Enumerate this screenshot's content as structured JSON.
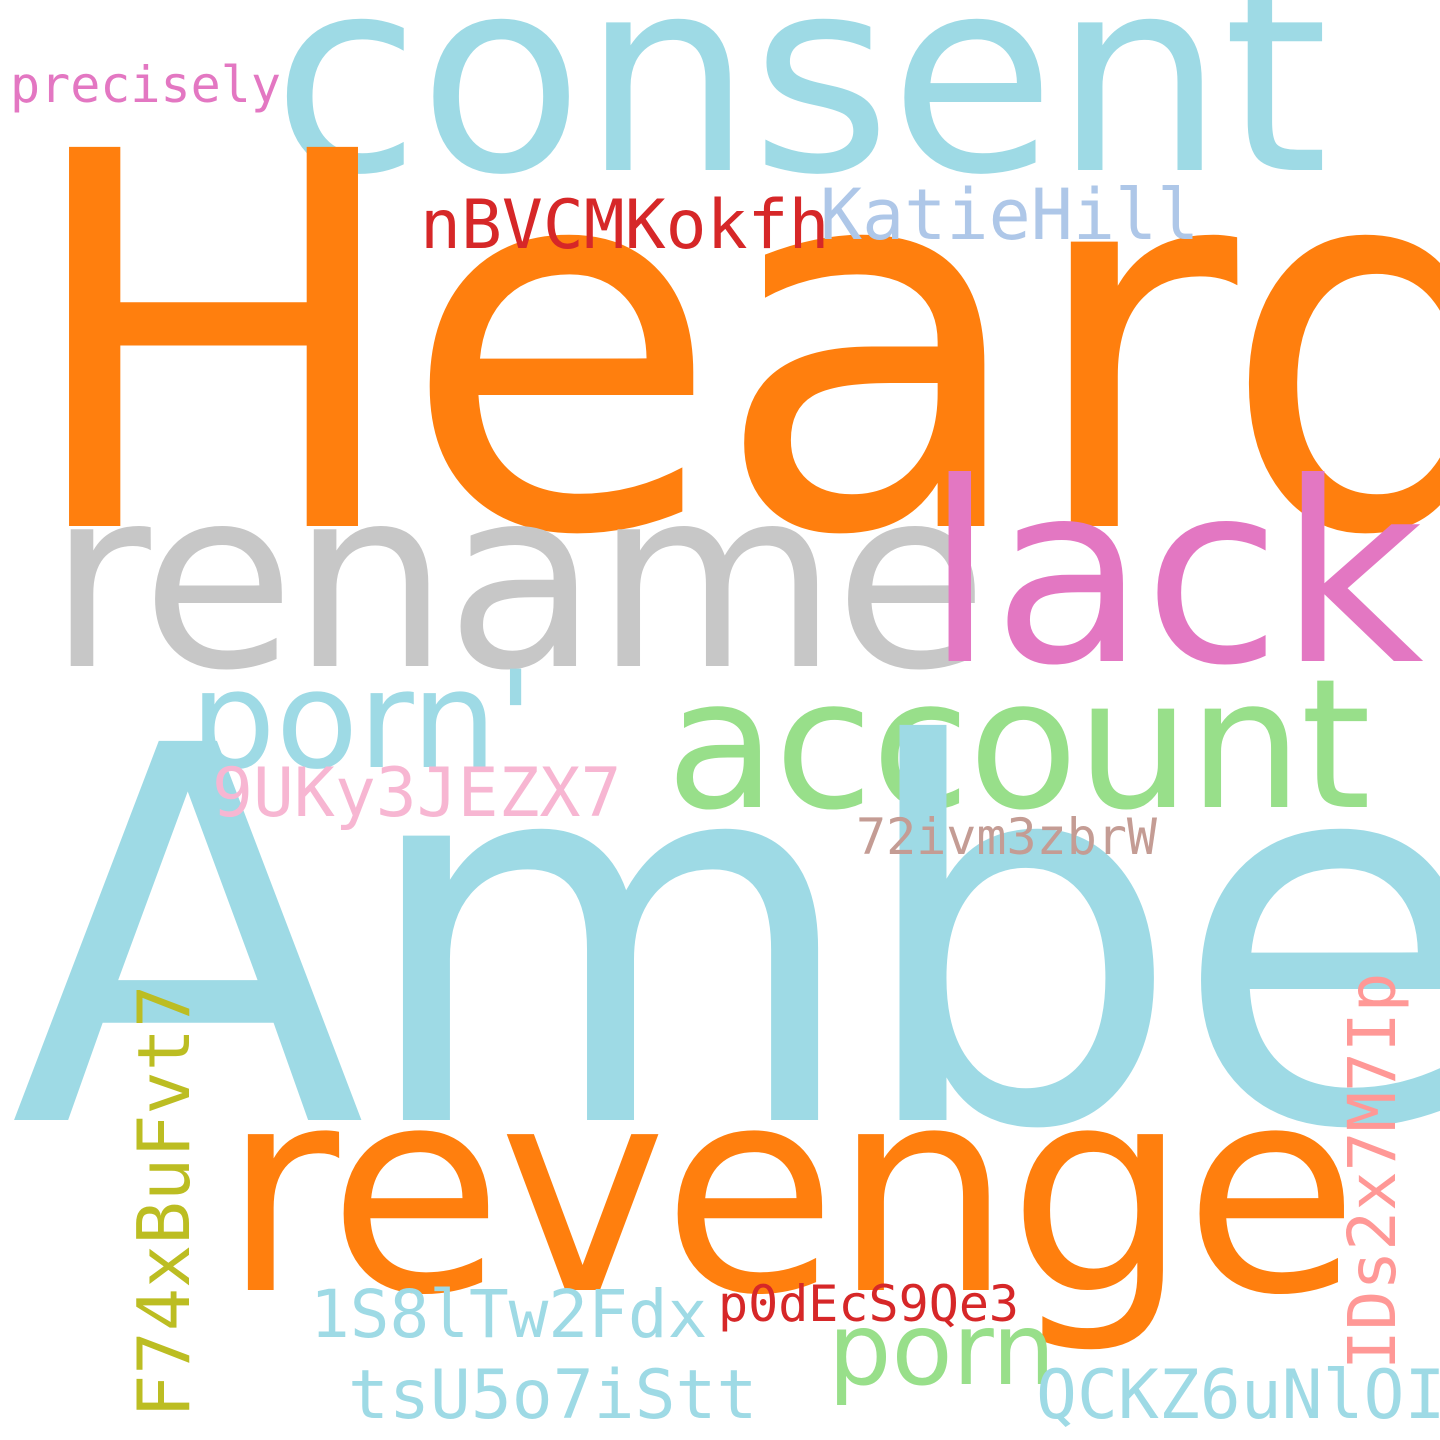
{
  "words": {
    "heard": {
      "text": "Heard",
      "color": "#ff7f0e"
    },
    "amber": {
      "text": "Amber",
      "color": "#9edae5"
    },
    "consent": {
      "text": "consent",
      "color": "#9edae5"
    },
    "rename": {
      "text": "rename",
      "color": "#c7c7c7"
    },
    "lack": {
      "text": "lack",
      "color": "#e377c2"
    },
    "account": {
      "text": "account",
      "color": "#98df8a"
    },
    "porn1": {
      "text": "porn'",
      "color": "#9edae5"
    },
    "revenge": {
      "text": "revenge",
      "color": "#ff7f0e"
    },
    "porn2": {
      "text": "porn",
      "color": "#98df8a"
    },
    "precisely": {
      "text": "precisely",
      "color": "#e377c2"
    },
    "katie": {
      "text": "KatieHill",
      "color": "#aec7e8"
    },
    "nbvc": {
      "text": "nBVCMKokfh",
      "color": "#d62728"
    },
    "nine": {
      "text": "9UKy3JEZX7",
      "color": "#f7b6d2"
    },
    "seventy": {
      "text": "72ivm3zbrW",
      "color": "#c49c94"
    },
    "one": {
      "text": "1S8lTw2Fdx",
      "color": "#9edae5"
    },
    "p0de": {
      "text": "p0dEcS9Qe3",
      "color": "#d62728"
    },
    "tsu": {
      "text": "tsU5o7iStt",
      "color": "#9edae5"
    },
    "qckz": {
      "text": "QCKZ6uNlOI",
      "color": "#9edae5"
    },
    "f74x": {
      "text": "F74xBuFvt7",
      "color": "#bcbd22"
    },
    "ids": {
      "text": "IDs2x7M7Ip",
      "color": "#ff9896"
    }
  }
}
